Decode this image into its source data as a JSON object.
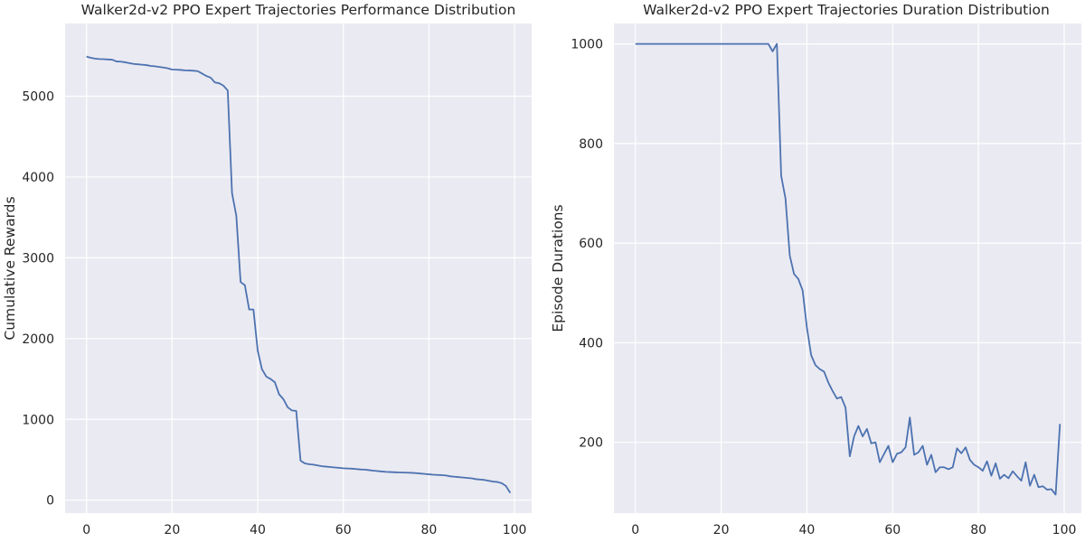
{
  "chart_data": [
    {
      "type": "line",
      "title": "Walker2d-v2 PPO Expert Trajectories Performance Distribution",
      "xlabel": "",
      "ylabel": "Cumulative Rewards",
      "xlim": [
        -5,
        104
      ],
      "ylim": [
        -160,
        5900
      ],
      "xticks": [
        0,
        20,
        40,
        60,
        80,
        100
      ],
      "yticks": [
        0,
        1000,
        2000,
        3000,
        4000,
        5000
      ],
      "grid": true,
      "series": [
        {
          "color": "#4c72b0",
          "x": [
            0,
            1,
            2,
            3,
            4,
            5,
            6,
            7,
            8,
            9,
            10,
            11,
            12,
            13,
            14,
            15,
            16,
            17,
            18,
            19,
            20,
            21,
            22,
            23,
            24,
            25,
            26,
            27,
            28,
            29,
            30,
            31,
            32,
            33,
            34,
            35,
            36,
            37,
            38,
            39,
            40,
            41,
            42,
            43,
            44,
            45,
            46,
            47,
            48,
            49,
            50,
            51,
            52,
            53,
            54,
            55,
            56,
            57,
            58,
            59,
            60,
            61,
            62,
            63,
            64,
            65,
            66,
            67,
            68,
            69,
            70,
            71,
            72,
            73,
            74,
            75,
            76,
            77,
            78,
            79,
            80,
            81,
            82,
            83,
            84,
            85,
            86,
            87,
            88,
            89,
            90,
            91,
            92,
            93,
            94,
            95,
            96,
            97,
            98,
            99
          ],
          "values": [
            5490,
            5475,
            5465,
            5460,
            5458,
            5455,
            5452,
            5430,
            5428,
            5420,
            5410,
            5400,
            5395,
            5390,
            5385,
            5375,
            5370,
            5362,
            5355,
            5345,
            5330,
            5328,
            5325,
            5320,
            5318,
            5315,
            5310,
            5280,
            5250,
            5230,
            5170,
            5160,
            5130,
            5070,
            3800,
            3520,
            2700,
            2660,
            2360,
            2360,
            1850,
            1620,
            1530,
            1500,
            1460,
            1310,
            1250,
            1150,
            1110,
            1105,
            490,
            455,
            445,
            440,
            430,
            420,
            415,
            410,
            405,
            400,
            395,
            392,
            390,
            385,
            380,
            378,
            372,
            365,
            360,
            355,
            350,
            348,
            345,
            343,
            342,
            340,
            338,
            335,
            330,
            325,
            320,
            315,
            312,
            310,
            305,
            295,
            290,
            285,
            280,
            275,
            270,
            260,
            255,
            250,
            240,
            230,
            225,
            210,
            175,
            90
          ]
        }
      ]
    },
    {
      "type": "line",
      "title": "Walker2d-v2 PPO Expert Trajectories Duration Distribution",
      "xlabel": "",
      "ylabel": "Episode Durations",
      "xlim": [
        -5,
        104
      ],
      "ylim": [
        58,
        1041
      ],
      "xticks": [
        0,
        20,
        40,
        60,
        80,
        100
      ],
      "yticks": [
        200,
        400,
        600,
        800,
        1000
      ],
      "grid": true,
      "series": [
        {
          "color": "#4c72b0",
          "x": [
            0,
            1,
            2,
            3,
            4,
            5,
            6,
            7,
            8,
            9,
            10,
            11,
            12,
            13,
            14,
            15,
            16,
            17,
            18,
            19,
            20,
            21,
            22,
            23,
            24,
            25,
            26,
            27,
            28,
            29,
            30,
            31,
            32,
            33,
            34,
            35,
            36,
            37,
            38,
            39,
            40,
            41,
            42,
            43,
            44,
            45,
            46,
            47,
            48,
            49,
            50,
            51,
            52,
            53,
            54,
            55,
            56,
            57,
            58,
            59,
            60,
            61,
            62,
            63,
            64,
            65,
            66,
            67,
            68,
            69,
            70,
            71,
            72,
            73,
            74,
            75,
            76,
            77,
            78,
            79,
            80,
            81,
            82,
            83,
            84,
            85,
            86,
            87,
            88,
            89,
            90,
            91,
            92,
            93,
            94,
            95,
            96,
            97,
            98,
            99
          ],
          "values": [
            1000,
            1000,
            1000,
            1000,
            1000,
            1000,
            1000,
            1000,
            1000,
            1000,
            1000,
            1000,
            1000,
            1000,
            1000,
            1000,
            1000,
            1000,
            1000,
            1000,
            1000,
            1000,
            1000,
            1000,
            1000,
            1000,
            1000,
            1000,
            1000,
            1000,
            1000,
            1000,
            985,
            1000,
            735,
            690,
            575,
            538,
            528,
            505,
            430,
            375,
            355,
            347,
            342,
            320,
            303,
            288,
            291,
            270,
            172,
            212,
            233,
            212,
            227,
            198,
            200,
            160,
            177,
            193,
            160,
            177,
            180,
            190,
            250,
            175,
            180,
            193,
            155,
            175,
            140,
            150,
            150,
            146,
            150,
            188,
            178,
            190,
            165,
            155,
            150,
            143,
            162,
            133,
            158,
            127,
            135,
            128,
            142,
            132,
            123,
            160,
            113,
            135,
            110,
            112,
            105,
            106,
            95,
            237
          ]
        }
      ]
    }
  ]
}
